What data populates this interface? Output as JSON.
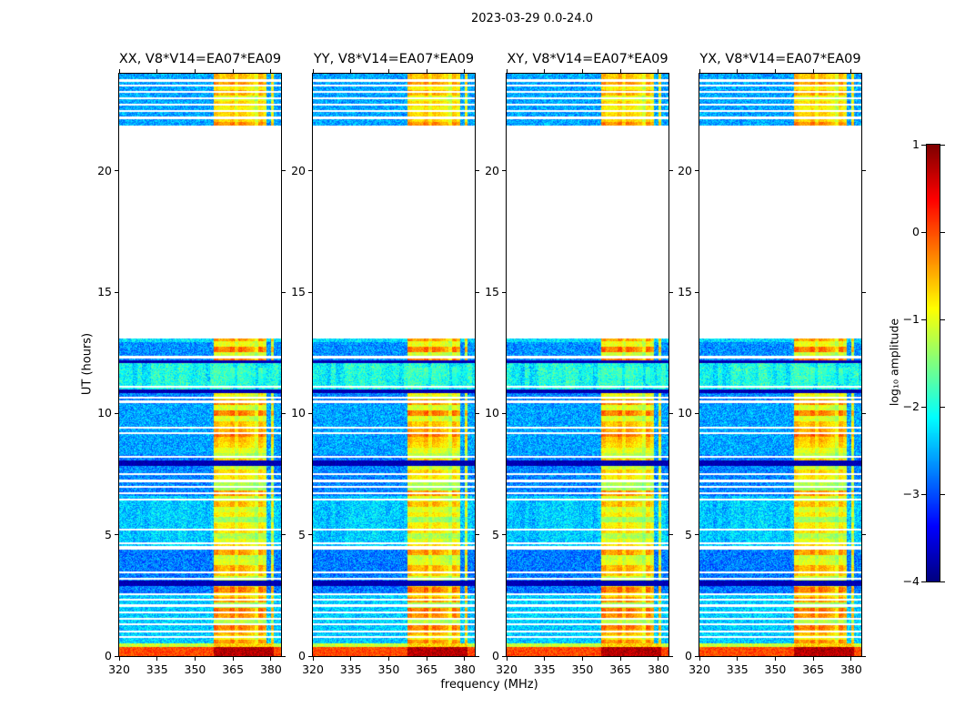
{
  "chart_data": {
    "type": "heatmap",
    "title": "2023-03-29 0.0-24.0",
    "panels": [
      {
        "id": "XX",
        "title": "XX, V8*V14=EA07*EA09",
        "seed": 11
      },
      {
        "id": "YY",
        "title": "YY, V8*V14=EA07*EA09",
        "seed": 22
      },
      {
        "id": "XY",
        "title": "XY, V8*V14=EA07*EA09",
        "seed": 33
      },
      {
        "id": "YX",
        "title": "YX, V8*V14=EA07*EA09",
        "seed": 44
      }
    ],
    "x_axis": {
      "label": "frequency (MHz)",
      "range": [
        320,
        384
      ],
      "ticks": [
        320,
        335,
        350,
        365,
        380
      ]
    },
    "y_axis": {
      "label": "UT (hours)",
      "range": [
        0,
        24
      ],
      "ticks": [
        0,
        5,
        10,
        15,
        20
      ]
    },
    "colorbar": {
      "label": "log₁₀ amplitude",
      "range": [
        -4,
        1
      ],
      "ticks": [
        1,
        0,
        -1,
        -2,
        -3,
        -4
      ],
      "colormap": "jet"
    },
    "time_segments": [
      {
        "t0": 0.0,
        "t1": 0.38,
        "kind": "burst"
      },
      {
        "t0": 0.38,
        "t1": 0.52,
        "kind": "bright-line"
      },
      {
        "t0": 0.52,
        "t1": 13.08,
        "kind": "data"
      },
      {
        "t0": 13.08,
        "t1": 21.85,
        "kind": "no-data"
      },
      {
        "t0": 21.85,
        "t1": 24.01,
        "kind": "data"
      }
    ],
    "rfi_band_mhz": [
      357.5,
      381
    ],
    "band_block_hours": 0.22,
    "band_channel_mhz": 1.6,
    "levels": {
      "background": -3.35,
      "noise": 0.85,
      "band_base": -2.2
    },
    "bright_rows": [
      [
        0.52,
        2.6,
        0.55
      ],
      [
        2.6,
        2.88,
        0.15
      ],
      [
        3.1,
        4.4,
        0.15
      ],
      [
        4.4,
        6.6,
        0.4
      ],
      [
        6.6,
        7.85,
        0.2
      ],
      [
        8.05,
        8.3,
        0.15
      ],
      [
        8.3,
        10.4,
        0.35
      ],
      [
        10.4,
        10.85,
        0.2
      ],
      [
        11.0,
        12.08,
        0.55
      ],
      [
        12.2,
        13.08,
        0.25
      ],
      [
        12.92,
        13.08,
        0.65
      ],
      [
        21.85,
        24.01,
        0.35
      ]
    ],
    "dark_bands": [
      [
        2.88,
        3.1
      ],
      [
        7.85,
        8.05
      ],
      [
        10.85,
        11.0
      ],
      [
        12.08,
        12.2
      ]
    ],
    "band_weak": [
      [
        11.0,
        12.08,
        1.3
      ]
    ],
    "streak_windows": [
      [
        4.4,
        6.6,
        0.25
      ],
      [
        11.0,
        12.08,
        0.55
      ]
    ],
    "dropouts": [
      [
        0.78,
        0.04
      ],
      [
        1.02,
        0.04
      ],
      [
        1.3,
        0.04
      ],
      [
        1.55,
        0.04
      ],
      [
        1.8,
        0.04
      ],
      [
        2.08,
        0.04
      ],
      [
        2.32,
        0.04
      ],
      [
        2.56,
        0.04
      ],
      [
        3.2,
        0.04
      ],
      [
        3.44,
        0.04
      ],
      [
        4.45,
        0.07
      ],
      [
        4.65,
        0.04
      ],
      [
        5.22,
        0.04
      ],
      [
        6.45,
        0.04
      ],
      [
        6.7,
        0.04
      ],
      [
        6.98,
        0.04
      ],
      [
        7.22,
        0.04
      ],
      [
        7.5,
        0.04
      ],
      [
        8.22,
        0.04
      ],
      [
        9.18,
        0.04
      ],
      [
        9.42,
        0.04
      ],
      [
        10.48,
        0.05
      ],
      [
        10.66,
        0.04
      ],
      [
        11.1,
        0.04
      ],
      [
        12.32,
        0.04
      ],
      [
        22.18,
        0.05
      ],
      [
        22.45,
        0.04
      ],
      [
        22.72,
        0.05
      ],
      [
        22.98,
        0.04
      ],
      [
        23.25,
        0.05
      ],
      [
        23.5,
        0.04
      ],
      [
        23.72,
        0.04
      ]
    ]
  }
}
